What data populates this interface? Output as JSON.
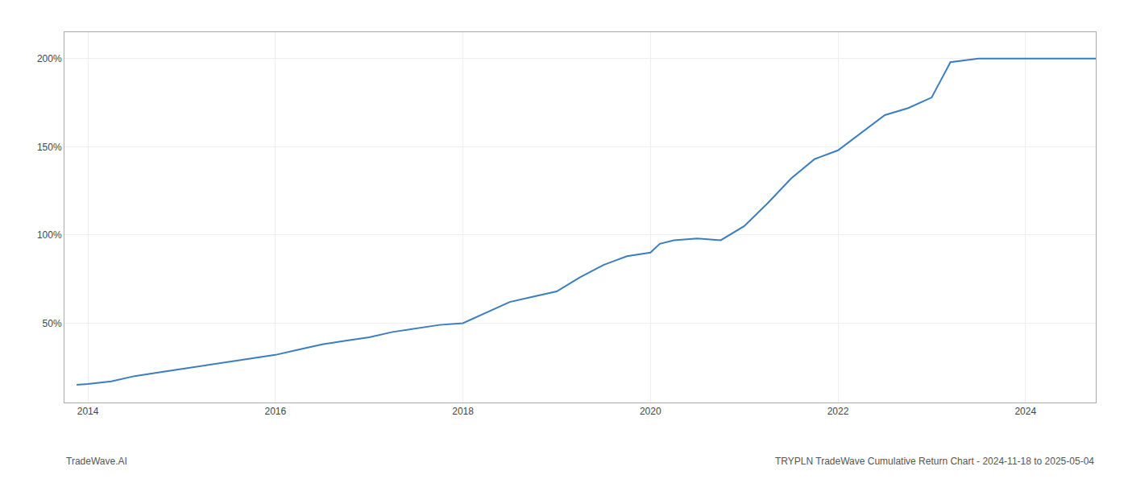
{
  "chart_data": {
    "type": "line",
    "annotations": [
      "TradeWave.AI",
      "TRYPLN TradeWave Cumulative Return Chart - 2024-11-18 to 2025-05-04"
    ],
    "x": [
      2013.88,
      2014.0,
      2014.25,
      2014.5,
      2014.75,
      2015.0,
      2015.25,
      2015.5,
      2015.75,
      2016.0,
      2016.25,
      2016.5,
      2016.75,
      2017.0,
      2017.25,
      2017.5,
      2017.75,
      2018.0,
      2018.25,
      2018.5,
      2018.75,
      2019.0,
      2019.25,
      2019.5,
      2019.75,
      2020.0,
      2020.1,
      2020.25,
      2020.5,
      2020.75,
      2021.0,
      2021.25,
      2021.5,
      2021.75,
      2022.0,
      2022.25,
      2022.5,
      2022.75,
      2023.0,
      2023.1,
      2023.2,
      2023.5,
      2023.75,
      2024.0,
      2024.25,
      2024.5,
      2024.75
    ],
    "values": [
      15,
      15.5,
      17,
      20,
      22,
      24,
      26,
      28,
      30,
      32,
      35,
      38,
      40,
      42,
      45,
      47,
      49,
      50,
      56,
      62,
      65,
      68,
      76,
      83,
      88,
      90,
      95,
      97,
      98,
      97,
      105,
      118,
      132,
      143,
      148,
      158,
      168,
      172,
      178,
      188,
      198,
      200,
      200,
      200,
      200,
      200,
      200
    ],
    "color": "#3a7ebf",
    "xlim": [
      2013.75,
      2024.75
    ],
    "ylim": [
      5,
      215
    ],
    "xticks": [
      2014,
      2016,
      2018,
      2020,
      2022,
      2024
    ],
    "yticks": [
      {
        "value": 50,
        "label": "50%"
      },
      {
        "value": 100,
        "label": "100%"
      },
      {
        "value": 150,
        "label": "150%"
      },
      {
        "value": 200,
        "label": "200%"
      }
    ],
    "grid": true
  }
}
